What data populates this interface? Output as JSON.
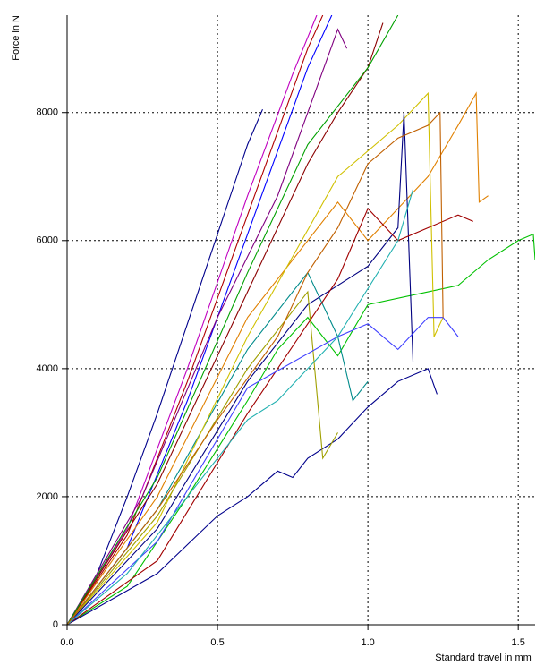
{
  "chart_data": {
    "type": "line",
    "x_label": "Standard travel in mm",
    "y_label": "Force in N",
    "xlim": [
      0,
      1.556
    ],
    "ylim": [
      0,
      9520
    ],
    "xticks": [
      {
        "value": 0,
        "label": "0.0"
      },
      0.5,
      {
        "value": 1,
        "label": "1.0"
      },
      1.5
    ],
    "yticks": [
      0,
      2000,
      4000,
      6000,
      8000
    ],
    "grid": true,
    "series": [
      {
        "color": "#00008b",
        "x": [
          0,
          0.1,
          0.2,
          0.3,
          0.4,
          0.5,
          0.6,
          0.65
        ],
        "values": [
          0,
          800,
          2000,
          3300,
          4700,
          6100,
          7500,
          8050
        ]
      },
      {
        "color": "#c000c0",
        "x": [
          0,
          0.2,
          0.4,
          0.6,
          0.75,
          0.83
        ],
        "values": [
          0,
          1500,
          4000,
          6700,
          8600,
          9520
        ]
      },
      {
        "color": "#b00000",
        "x": [
          0,
          0.2,
          0.4,
          0.6,
          0.8,
          0.85
        ],
        "values": [
          0,
          1400,
          3800,
          6400,
          9000,
          9520
        ]
      },
      {
        "color": "#0000ff",
        "x": [
          0,
          0.2,
          0.4,
          0.6,
          0.8,
          0.88
        ],
        "values": [
          0,
          1200,
          3500,
          6100,
          8700,
          9520
        ]
      },
      {
        "color": "#00c000",
        "x": [
          0,
          0.2,
          0.4,
          0.6,
          0.7,
          0.8,
          0.9,
          1.0,
          1.2,
          1.3,
          1.4,
          1.5,
          1.55,
          1.556
        ],
        "values": [
          0,
          600,
          2000,
          3500,
          4300,
          4800,
          4200,
          5000,
          5200,
          5300,
          5700,
          6000,
          6100,
          5700
        ]
      },
      {
        "color": "#e08000",
        "x": [
          0,
          0.3,
          0.6,
          0.9,
          1.0,
          1.1,
          1.2,
          1.3,
          1.36,
          1.37,
          1.4
        ],
        "values": [
          0,
          2000,
          4800,
          6600,
          6000,
          6500,
          7000,
          7800,
          8300,
          6600,
          6700
        ]
      },
      {
        "color": "#00008b",
        "x": [
          0,
          0.3,
          0.5,
          0.6,
          0.7,
          0.75,
          0.8,
          0.9,
          1.0,
          1.1,
          1.2,
          1.23
        ],
        "values": [
          0,
          800,
          1700,
          2000,
          2400,
          2300,
          2600,
          2900,
          3400,
          3800,
          4000,
          3600
        ]
      },
      {
        "color": "#8b0000",
        "x": [
          0,
          0.3,
          0.6,
          0.8,
          0.9,
          1.0,
          1.05
        ],
        "values": [
          0,
          2200,
          5200,
          7200,
          8000,
          8700,
          9400
        ]
      },
      {
        "color": "#008b8b",
        "x": [
          0,
          0.3,
          0.6,
          0.8,
          0.9,
          0.95,
          1.0
        ],
        "values": [
          0,
          1800,
          4300,
          5500,
          4500,
          3500,
          3800
        ]
      },
      {
        "color": "#d0c000",
        "x": [
          0,
          0.3,
          0.6,
          0.9,
          1.1,
          1.2,
          1.22,
          1.25
        ],
        "values": [
          0,
          1600,
          4500,
          7000,
          7800,
          8300,
          4500,
          4800
        ]
      },
      {
        "color": "#000080",
        "x": [
          0,
          0.3,
          0.6,
          0.8,
          1.0,
          1.1,
          1.12,
          1.15
        ],
        "values": [
          0,
          1500,
          3800,
          5000,
          5600,
          6200,
          8000,
          4100
        ]
      },
      {
        "color": "#a0a000",
        "x": [
          0,
          0.3,
          0.6,
          0.8,
          0.85,
          0.9
        ],
        "values": [
          0,
          1700,
          4000,
          5200,
          2600,
          3000
        ]
      },
      {
        "color": "#800080",
        "x": [
          0,
          0.25,
          0.5,
          0.7,
          0.9,
          0.93
        ],
        "values": [
          0,
          2000,
          4800,
          6700,
          9300,
          9000
        ]
      },
      {
        "color": "#00a000",
        "x": [
          0,
          0.3,
          0.6,
          0.8,
          1.0,
          1.1
        ],
        "values": [
          0,
          2300,
          5500,
          7500,
          8700,
          9520
        ]
      },
      {
        "color": "#a00000",
        "x": [
          0,
          0.3,
          0.6,
          0.9,
          1.0,
          1.1,
          1.2,
          1.3,
          1.35
        ],
        "values": [
          0,
          1000,
          3300,
          5400,
          6500,
          6000,
          6200,
          6400,
          6300
        ]
      },
      {
        "color": "#4040ff",
        "x": [
          0,
          0.3,
          0.6,
          0.9,
          1.0,
          1.1,
          1.2,
          1.25,
          1.3
        ],
        "values": [
          0,
          1300,
          3700,
          4500,
          4700,
          4300,
          4800,
          4800,
          4500
        ]
      },
      {
        "color": "#20b0b0",
        "x": [
          0,
          0.2,
          0.4,
          0.6,
          0.7,
          0.9,
          1.1,
          1.15
        ],
        "values": [
          0,
          800,
          2000,
          3200,
          3500,
          4500,
          6000,
          6800
        ]
      },
      {
        "color": "#c06000",
        "x": [
          0,
          0.3,
          0.5,
          0.7,
          0.8,
          0.9,
          1.0,
          1.1,
          1.2,
          1.24,
          1.25
        ],
        "values": [
          0,
          1800,
          3200,
          4500,
          5500,
          6200,
          7200,
          7600,
          7800,
          8000,
          4800
        ]
      }
    ]
  }
}
